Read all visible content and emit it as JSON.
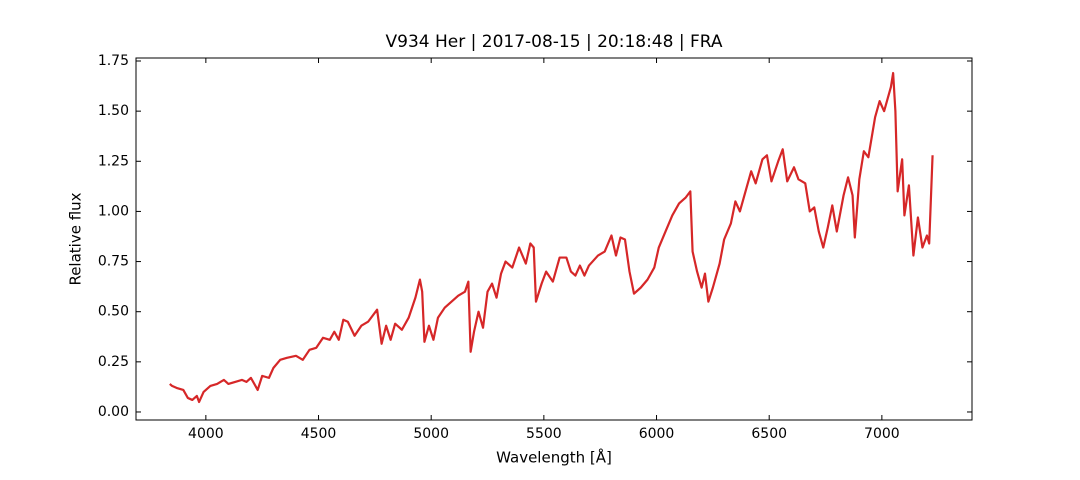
{
  "chart_data": {
    "type": "line",
    "title": "V934 Her | 2017-08-15 | 20:18:48 | FRA",
    "x_label": "Wavelength [Å]",
    "y_label": "Relative flux",
    "xlim": [
      3690,
      7400
    ],
    "ylim": [
      -0.04,
      1.765
    ],
    "xticks": [
      4000,
      4500,
      5000,
      5500,
      6000,
      6500,
      7000
    ],
    "yticks": [
      {
        "value": 0,
        "label": "0.00"
      },
      {
        "value": 0.25,
        "label": "0.25"
      },
      {
        "value": 0.5,
        "label": "0.50"
      },
      {
        "value": 0.75,
        "label": "0.75"
      },
      {
        "value": 1,
        "label": "1.00"
      },
      {
        "value": 1.25,
        "label": "1.25"
      },
      {
        "value": 1.5,
        "label": "1.50"
      },
      {
        "value": 1.75,
        "label": "1.75"
      }
    ],
    "x": [
      3840,
      3850,
      3870,
      3900,
      3920,
      3940,
      3960,
      3970,
      3990,
      4020,
      4050,
      4080,
      4100,
      4130,
      4160,
      4180,
      4200,
      4230,
      4250,
      4280,
      4300,
      4330,
      4360,
      4400,
      4430,
      4460,
      4490,
      4520,
      4550,
      4570,
      4590,
      4610,
      4630,
      4660,
      4690,
      4720,
      4760,
      4780,
      4800,
      4820,
      4840,
      4870,
      4900,
      4930,
      4950,
      4960,
      4970,
      4990,
      5010,
      5030,
      5060,
      5090,
      5120,
      5150,
      5165,
      5175,
      5190,
      5210,
      5230,
      5250,
      5270,
      5290,
      5310,
      5330,
      5360,
      5390,
      5420,
      5440,
      5455,
      5465,
      5490,
      5510,
      5540,
      5570,
      5600,
      5620,
      5640,
      5660,
      5680,
      5700,
      5740,
      5770,
      5800,
      5820,
      5840,
      5860,
      5880,
      5900,
      5930,
      5960,
      5990,
      6010,
      6040,
      6070,
      6100,
      6130,
      6150,
      6160,
      6180,
      6200,
      6215,
      6230,
      6250,
      6280,
      6300,
      6330,
      6350,
      6370,
      6400,
      6420,
      6440,
      6470,
      6490,
      6510,
      6540,
      6560,
      6580,
      6610,
      6630,
      6660,
      6680,
      6700,
      6720,
      6740,
      6760,
      6780,
      6800,
      6830,
      6850,
      6870,
      6880,
      6900,
      6920,
      6940,
      6970,
      6990,
      7010,
      7040,
      7050,
      7060,
      7070,
      7090,
      7100,
      7120,
      7140,
      7160,
      7180,
      7200,
      7210,
      7225
    ],
    "series": [
      {
        "name": "flux",
        "color": "#d62728",
        "values": [
          0.14,
          0.13,
          0.12,
          0.11,
          0.07,
          0.06,
          0.08,
          0.05,
          0.1,
          0.13,
          0.14,
          0.16,
          0.14,
          0.15,
          0.16,
          0.15,
          0.17,
          0.11,
          0.18,
          0.17,
          0.22,
          0.26,
          0.27,
          0.28,
          0.26,
          0.31,
          0.32,
          0.37,
          0.36,
          0.4,
          0.36,
          0.46,
          0.45,
          0.38,
          0.43,
          0.45,
          0.51,
          0.34,
          0.43,
          0.36,
          0.44,
          0.41,
          0.47,
          0.57,
          0.66,
          0.6,
          0.35,
          0.43,
          0.36,
          0.47,
          0.52,
          0.55,
          0.58,
          0.6,
          0.65,
          0.3,
          0.4,
          0.5,
          0.42,
          0.6,
          0.64,
          0.57,
          0.69,
          0.75,
          0.72,
          0.82,
          0.74,
          0.84,
          0.82,
          0.55,
          0.64,
          0.7,
          0.65,
          0.77,
          0.77,
          0.7,
          0.68,
          0.73,
          0.68,
          0.73,
          0.78,
          0.8,
          0.88,
          0.78,
          0.87,
          0.86,
          0.7,
          0.59,
          0.62,
          0.66,
          0.72,
          0.82,
          0.9,
          0.98,
          1.04,
          1.07,
          1.1,
          0.8,
          0.7,
          0.62,
          0.69,
          0.55,
          0.62,
          0.74,
          0.86,
          0.94,
          1.05,
          1.0,
          1.12,
          1.2,
          1.14,
          1.26,
          1.28,
          1.15,
          1.25,
          1.31,
          1.15,
          1.22,
          1.16,
          1.14,
          1.0,
          1.02,
          0.9,
          0.82,
          0.92,
          1.03,
          0.9,
          1.08,
          1.17,
          1.08,
          0.87,
          1.16,
          1.3,
          1.27,
          1.47,
          1.55,
          1.5,
          1.62,
          1.69,
          1.5,
          1.1,
          1.26,
          0.98,
          1.13,
          0.78,
          0.97,
          0.82,
          0.88,
          0.84,
          1.28
        ]
      }
    ]
  }
}
